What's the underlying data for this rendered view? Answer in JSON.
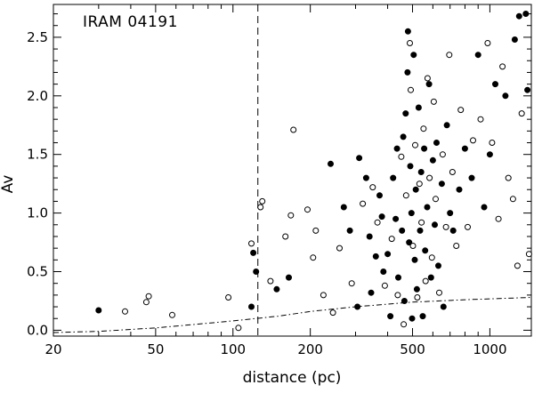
{
  "chart_data": {
    "type": "scatter",
    "title": "IRAM 04191",
    "xlabel": "distance (pc)",
    "ylabel": "Av",
    "x_scale": "log",
    "xlim": [
      20,
      1450
    ],
    "ylim": [
      -0.05,
      2.78
    ],
    "x_ticks": [
      20,
      50,
      100,
      200,
      500,
      1000
    ],
    "x_tick_labels": [
      "20",
      "50",
      "100",
      "200",
      "500",
      "1000"
    ],
    "y_ticks": [
      0.0,
      0.5,
      1.0,
      1.5,
      2.0,
      2.5
    ],
    "y_tick_labels": [
      "0.0",
      "0.5",
      "1.0",
      "1.5",
      "2.0",
      "2.5"
    ],
    "grid": false,
    "marker_color": "#000000",
    "reference_lines": {
      "vertical_dashed_x": 125,
      "dash_dot_curve": {
        "x": [
          20,
          30,
          50,
          80,
          100,
          150,
          200,
          300,
          500,
          800,
          1450
        ],
        "y": [
          -0.02,
          -0.01,
          0.02,
          0.06,
          0.08,
          0.12,
          0.16,
          0.2,
          0.24,
          0.26,
          0.28
        ]
      }
    },
    "series": [
      {
        "marker": "filled-circle",
        "points": [
          [
            30,
            0.17
          ],
          [
            120,
            0.66
          ],
          [
            123,
            0.5
          ],
          [
            118,
            0.2
          ],
          [
            165,
            0.45
          ],
          [
            148,
            0.35
          ],
          [
            240,
            1.42
          ],
          [
            270,
            1.05
          ],
          [
            285,
            0.85
          ],
          [
            305,
            0.2
          ],
          [
            310,
            1.47
          ],
          [
            330,
            1.3
          ],
          [
            340,
            0.8
          ],
          [
            345,
            0.32
          ],
          [
            360,
            0.63
          ],
          [
            372,
            1.15
          ],
          [
            380,
            0.97
          ],
          [
            385,
            0.5
          ],
          [
            400,
            0.65
          ],
          [
            410,
            0.12
          ],
          [
            420,
            1.3
          ],
          [
            430,
            0.95
          ],
          [
            435,
            1.55
          ],
          [
            440,
            0.45
          ],
          [
            455,
            0.85
          ],
          [
            460,
            1.65
          ],
          [
            465,
            0.25
          ],
          [
            470,
            1.85
          ],
          [
            478,
            2.2
          ],
          [
            480,
            2.55
          ],
          [
            485,
            0.75
          ],
          [
            490,
            1.4
          ],
          [
            495,
            1.0
          ],
          [
            498,
            0.1
          ],
          [
            505,
            2.35
          ],
          [
            510,
            0.6
          ],
          [
            515,
            1.2
          ],
          [
            520,
            0.35
          ],
          [
            528,
            1.9
          ],
          [
            535,
            0.85
          ],
          [
            540,
            1.35
          ],
          [
            548,
            0.12
          ],
          [
            555,
            1.55
          ],
          [
            560,
            0.68
          ],
          [
            570,
            1.05
          ],
          [
            580,
            2.1
          ],
          [
            590,
            0.45
          ],
          [
            600,
            1.45
          ],
          [
            610,
            0.9
          ],
          [
            620,
            1.6
          ],
          [
            630,
            0.55
          ],
          [
            650,
            1.25
          ],
          [
            660,
            0.2
          ],
          [
            680,
            1.75
          ],
          [
            700,
            1.0
          ],
          [
            720,
            0.85
          ],
          [
            760,
            1.2
          ],
          [
            800,
            1.55
          ],
          [
            850,
            1.3
          ],
          [
            900,
            2.35
          ],
          [
            950,
            1.05
          ],
          [
            1000,
            1.5
          ],
          [
            1050,
            2.1
          ],
          [
            1150,
            2.0
          ],
          [
            1250,
            2.48
          ],
          [
            1300,
            2.68
          ],
          [
            1380,
            2.7
          ],
          [
            1400,
            2.05
          ]
        ]
      },
      {
        "marker": "open-circle",
        "points": [
          [
            38,
            0.16
          ],
          [
            46,
            0.24
          ],
          [
            47,
            0.29
          ],
          [
            58,
            0.13
          ],
          [
            96,
            0.28
          ],
          [
            105,
            0.02
          ],
          [
            118,
            0.74
          ],
          [
            128,
            1.05
          ],
          [
            130,
            1.1
          ],
          [
            160,
            0.8
          ],
          [
            168,
            0.98
          ],
          [
            172,
            1.71
          ],
          [
            195,
            1.03
          ],
          [
            205,
            0.62
          ],
          [
            225,
            0.3
          ],
          [
            260,
            0.7
          ],
          [
            290,
            0.4
          ],
          [
            320,
            1.08
          ],
          [
            350,
            1.22
          ],
          [
            365,
            0.92
          ],
          [
            390,
            0.38
          ],
          [
            415,
            0.78
          ],
          [
            438,
            0.3
          ],
          [
            452,
            1.48
          ],
          [
            462,
            0.05
          ],
          [
            472,
            1.15
          ],
          [
            488,
            2.45
          ],
          [
            492,
            2.05
          ],
          [
            502,
            0.72
          ],
          [
            512,
            1.58
          ],
          [
            522,
            0.28
          ],
          [
            532,
            1.25
          ],
          [
            542,
            0.92
          ],
          [
            552,
            1.72
          ],
          [
            562,
            0.42
          ],
          [
            572,
            2.15
          ],
          [
            582,
            1.3
          ],
          [
            595,
            0.62
          ],
          [
            605,
            1.95
          ],
          [
            615,
            1.12
          ],
          [
            635,
            0.32
          ],
          [
            655,
            1.5
          ],
          [
            675,
            0.88
          ],
          [
            695,
            2.35
          ],
          [
            715,
            1.35
          ],
          [
            740,
            0.72
          ],
          [
            770,
            1.88
          ],
          [
            820,
            0.88
          ],
          [
            860,
            1.62
          ],
          [
            920,
            1.8
          ],
          [
            980,
            2.45
          ],
          [
            1020,
            1.6
          ],
          [
            1080,
            0.95
          ],
          [
            1120,
            2.25
          ],
          [
            1180,
            1.3
          ],
          [
            1230,
            1.12
          ],
          [
            1280,
            0.55
          ],
          [
            1330,
            1.85
          ],
          [
            1420,
            0.65
          ],
          [
            140,
            0.42
          ],
          [
            210,
            0.85
          ],
          [
            245,
            0.15
          ]
        ]
      }
    ]
  }
}
